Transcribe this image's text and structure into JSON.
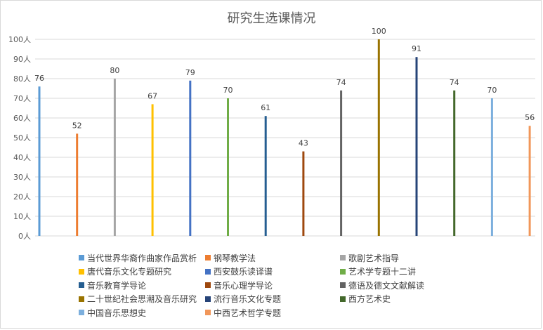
{
  "chart_data": {
    "type": "bar",
    "title": "研究生选课情况",
    "xlabel": "",
    "ylabel": "",
    "ylim": [
      0,
      100
    ],
    "ytick_step": 10,
    "ytick_suffix": "人",
    "yticks": [
      "0人",
      "10人",
      "20人",
      "30人",
      "40人",
      "50人",
      "60人",
      "70人",
      "80人",
      "90人",
      "100人"
    ],
    "grid": true,
    "legend_position": "bottom",
    "categories": [
      "当代世界华裔作曲家作品赏析",
      "钢琴教学法",
      "歌剧艺术指导",
      "唐代音乐文化专题研究",
      "西安鼓乐读译谱",
      "艺术学专题十二讲",
      "音乐教育学导论",
      "音乐心理学导论",
      "德语及德文文献解读",
      "二十世纪社会思潮及音乐研究",
      "流行音乐文化专题",
      "西方艺术史",
      "中国音乐思想史",
      "中西艺术哲学专题"
    ],
    "values": [
      76,
      52,
      80,
      67,
      79,
      70,
      61,
      43,
      74,
      100,
      91,
      74,
      70,
      56
    ],
    "data_labels": [
      "76",
      "52",
      "80",
      "67",
      "79",
      "70",
      "61",
      "43",
      "74",
      "100",
      "91",
      "74",
      "70",
      "56"
    ],
    "colors": [
      "#5B9BD5",
      "#ED7D31",
      "#A5A5A5",
      "#FFC000",
      "#4472C4",
      "#70AD47",
      "#255E91",
      "#9E480E",
      "#636363",
      "#997300",
      "#264478",
      "#43682B",
      "#7CAFDD",
      "#F1975A"
    ]
  }
}
